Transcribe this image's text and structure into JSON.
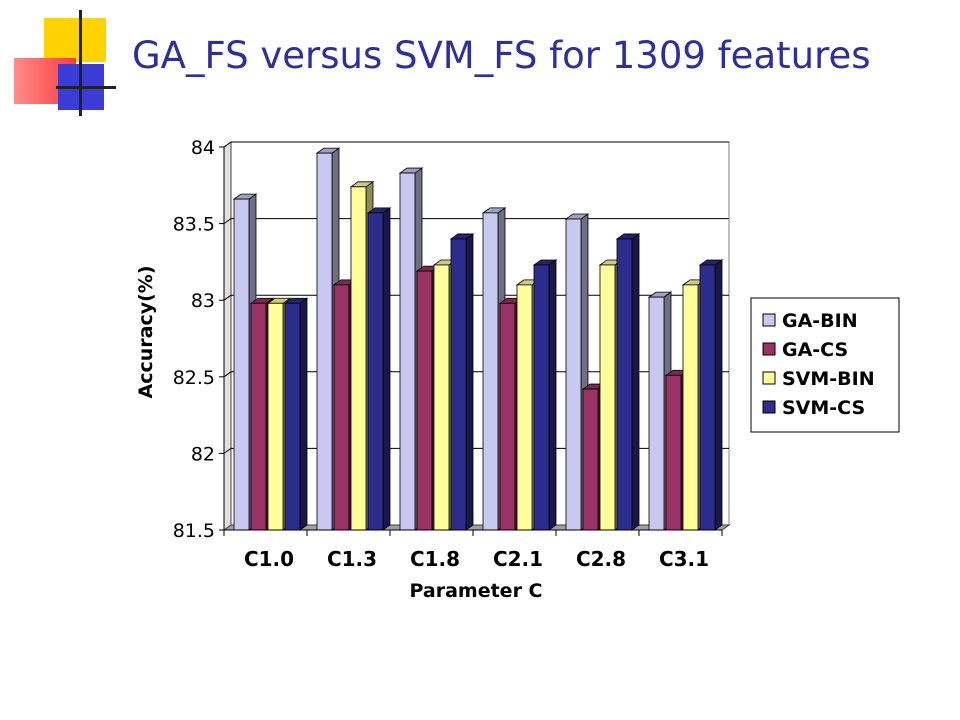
{
  "slide": {
    "title": "GA_FS versus SVM_FS for 1309 features"
  },
  "chart_data": {
    "type": "bar",
    "categories": [
      "C1.0",
      "C1.3",
      "C1.8",
      "C2.1",
      "C2.8",
      "C3.1"
    ],
    "series": [
      {
        "name": "GA-BIN",
        "color": "#c8c8f0",
        "values": [
          83.66,
          83.96,
          83.83,
          83.57,
          83.53,
          83.02
        ]
      },
      {
        "name": "GA-CS",
        "color": "#993366",
        "values": [
          82.98,
          83.1,
          83.19,
          82.98,
          82.42,
          82.51
        ]
      },
      {
        "name": "SVM-BIN",
        "color": "#ffff99",
        "values": [
          82.98,
          83.74,
          83.23,
          83.1,
          83.23,
          83.1
        ]
      },
      {
        "name": "SVM-CS",
        "color": "#2c2c8c",
        "values": [
          82.98,
          83.57,
          83.4,
          83.23,
          83.4,
          83.23
        ]
      }
    ],
    "title": "",
    "xlabel": "Parameter C",
    "ylabel": "Accuracy(%)",
    "ylim": [
      81.5,
      84
    ],
    "yticks": [
      "81.5",
      "82",
      "82.5",
      "83",
      "83.5",
      "84"
    ],
    "grid": true,
    "legend_position": "right"
  }
}
